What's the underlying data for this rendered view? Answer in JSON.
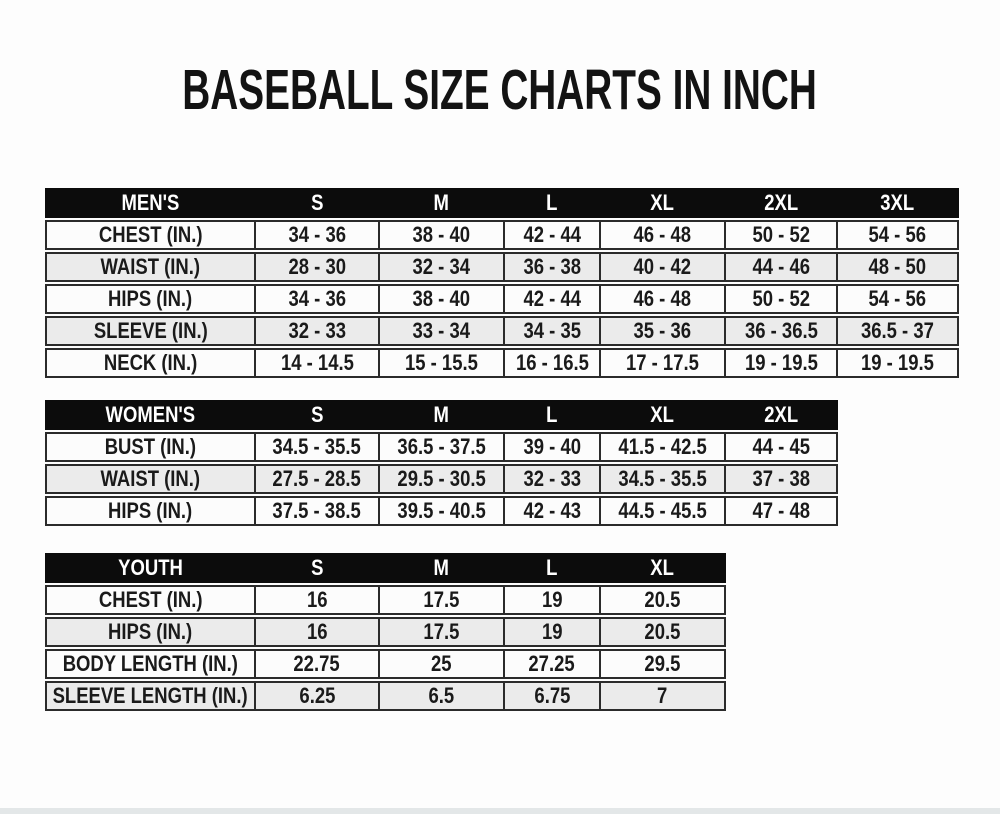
{
  "page": {
    "title": "BASEBALL SIZE CHARTS IN INCH",
    "colors": {
      "background": "#fdfdfd",
      "header_bg": "#0c0c0c",
      "header_text": "#ffffff",
      "row_bg": "#fcfcfc",
      "row_alt_bg": "#ebebeb",
      "border": "#2b2b2b",
      "text": "#1a1a1a"
    }
  },
  "tables": [
    {
      "id": "mens",
      "header": [
        "MEN'S",
        "S",
        "M",
        "L",
        "XL",
        "2XL",
        "3XL"
      ],
      "rows": [
        {
          "label": "CHEST (IN.)",
          "values": [
            "34 - 36",
            "38 - 40",
            "42 - 44",
            "46 - 48",
            "50 - 52",
            "54 - 56"
          ]
        },
        {
          "label": "WAIST (IN.)",
          "values": [
            "28 - 30",
            "32 - 34",
            "36 - 38",
            "40 - 42",
            "44 - 46",
            "48 - 50"
          ]
        },
        {
          "label": "HIPS (IN.)",
          "values": [
            "34 - 36",
            "38 - 40",
            "42 - 44",
            "46 - 48",
            "50 - 52",
            "54 - 56"
          ]
        },
        {
          "label": "SLEEVE (IN.)",
          "values": [
            "32 - 33",
            "33 - 34",
            "34 - 35",
            "35 - 36",
            "36 - 36.5",
            "36.5 - 37"
          ]
        },
        {
          "label": "NECK (IN.)",
          "values": [
            "14 - 14.5",
            "15 - 15.5",
            "16 - 16.5",
            "17 - 17.5",
            "19 - 19.5",
            "19 - 19.5"
          ]
        }
      ]
    },
    {
      "id": "womens",
      "header": [
        "WOMEN'S",
        "S",
        "M",
        "L",
        "XL",
        "2XL"
      ],
      "rows": [
        {
          "label": "BUST (IN.)",
          "values": [
            "34.5 - 35.5",
            "36.5 - 37.5",
            "39 - 40",
            "41.5 - 42.5",
            "44 - 45"
          ]
        },
        {
          "label": "WAIST (IN.)",
          "values": [
            "27.5 - 28.5",
            "29.5 - 30.5",
            "32 - 33",
            "34.5 - 35.5",
            "37 - 38"
          ]
        },
        {
          "label": "HIPS (IN.)",
          "values": [
            "37.5 - 38.5",
            "39.5 - 40.5",
            "42 - 43",
            "44.5 - 45.5",
            "47 - 48"
          ]
        }
      ]
    },
    {
      "id": "youth",
      "header": [
        "YOUTH",
        "S",
        "M",
        "L",
        "XL"
      ],
      "rows": [
        {
          "label": "CHEST (IN.)",
          "values": [
            "16",
            "17.5",
            "19",
            "20.5"
          ]
        },
        {
          "label": "HIPS (IN.)",
          "values": [
            "16",
            "17.5",
            "19",
            "20.5"
          ]
        },
        {
          "label": "BODY LENGTH (IN.)",
          "values": [
            "22.75",
            "25",
            "27.25",
            "29.5"
          ]
        },
        {
          "label": "SLEEVE LENGTH (IN.)",
          "values": [
            "6.25",
            "6.5",
            "6.75",
            "7"
          ]
        }
      ]
    }
  ]
}
